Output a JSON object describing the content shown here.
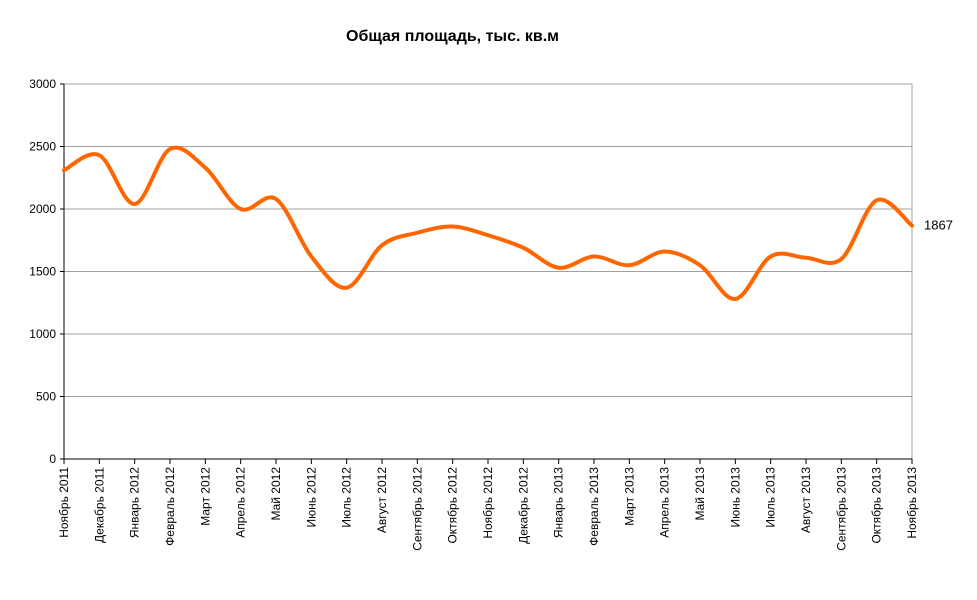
{
  "chart_data": {
    "type": "line",
    "title": "Общая площадь, тыс. кв.м",
    "xlabel": "",
    "ylabel": "",
    "ylim": [
      0,
      3000
    ],
    "yticks": [
      0,
      500,
      1000,
      1500,
      2000,
      2500,
      3000
    ],
    "grid": true,
    "legend": "none",
    "categories": [
      "Ноябрь 2011",
      "Декабрь 2011",
      "Январь 2012",
      "Февраль 2012",
      "Март 2012",
      "Апрель 2012",
      "Май 2012",
      "Июнь 2012",
      "Июль 2012",
      "Август 2012",
      "Сентябрь 2012",
      "Октябрь 2012",
      "Ноябрь 2012",
      "Декабрь 2012",
      "Январь 2013",
      "Февраль 2013",
      "Март 2013",
      "Апрель 2013",
      "Май 2013",
      "Июнь 2013",
      "Июль 2013",
      "Август 2013",
      "Сентябрь 2013",
      "Октябрь 2013",
      "Ноябрь 2013"
    ],
    "series": [
      {
        "color": "#FF6600",
        "values": [
          2310,
          2430,
          2040,
          2480,
          2330,
          2000,
          2080,
          1620,
          1370,
          1710,
          1810,
          1860,
          1790,
          1690,
          1530,
          1620,
          1550,
          1660,
          1550,
          1280,
          1620,
          1610,
          1600,
          2070,
          1867
        ]
      }
    ],
    "end_label": "1867"
  }
}
